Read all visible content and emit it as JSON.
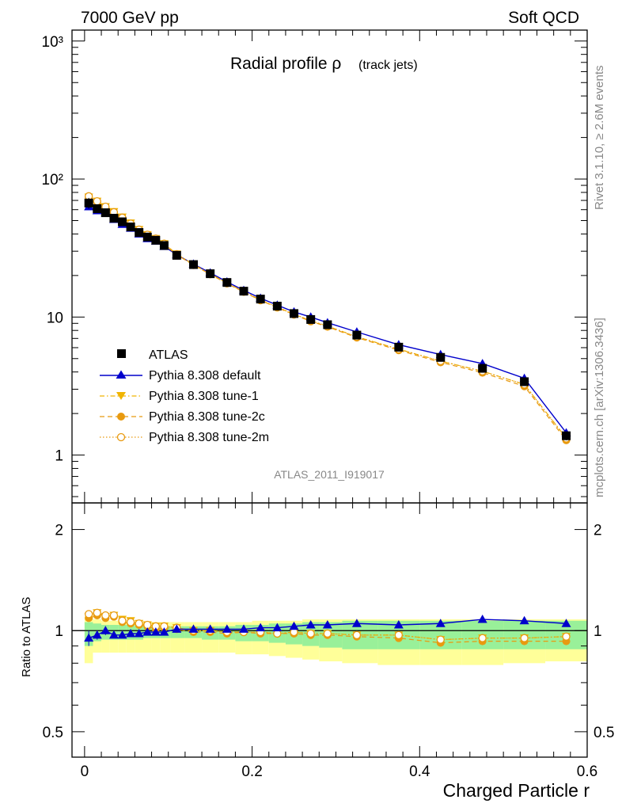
{
  "header": {
    "left": "7000 GeV pp",
    "right": "Soft QCD"
  },
  "side": {
    "rivet": "Rivet 3.1.10, ≥ 2.6M events",
    "source": "mcplots.cern.ch [arXiv:1306.3436]"
  },
  "title": {
    "main": "Radial profile ρ",
    "sub": "(track jets)"
  },
  "analysis_label": "ATLAS_2011_I919017",
  "legend": [
    {
      "label": "ATLAS",
      "color": "#000000",
      "marker": "square",
      "line": "none"
    },
    {
      "label": "Pythia 8.308 default",
      "color": "#0000cc",
      "marker": "triangle-up",
      "line": "solid"
    },
    {
      "label": "Pythia 8.308 tune-1",
      "color": "#f0b400",
      "marker": "triangle-down",
      "line": "dashdot"
    },
    {
      "label": "Pythia 8.308 tune-2c",
      "color": "#e89a10",
      "marker": "circle",
      "line": "dashed"
    },
    {
      "label": "Pythia 8.308 tune-2m",
      "color": "#e89a10",
      "marker": "circle-open",
      "line": "dotted"
    }
  ],
  "chart_data": {
    "type": "line",
    "x": [
      0.005,
      0.015,
      0.025,
      0.035,
      0.045,
      0.055,
      0.065,
      0.075,
      0.085,
      0.095,
      0.11,
      0.13,
      0.15,
      0.17,
      0.19,
      0.21,
      0.23,
      0.25,
      0.27,
      0.29,
      0.325,
      0.375,
      0.425,
      0.475,
      0.525,
      0.575
    ],
    "xlabel": "Charged Particle r",
    "xlim": [
      -0.015,
      0.6
    ],
    "xticks": [
      "0",
      "0.2",
      "0.4",
      "0.6"
    ],
    "main_panel": {
      "yscale": "log",
      "ylim": [
        0.45,
        1200
      ],
      "yticks": [
        "1",
        "10",
        "10²",
        "10³"
      ],
      "series": [
        {
          "name": "ATLAS",
          "values": [
            67,
            61,
            57,
            52,
            49,
            45,
            41,
            38,
            36,
            33,
            28,
            24,
            20.6,
            17.8,
            15.4,
            13.5,
            12.0,
            10.6,
            9.6,
            8.8,
            7.4,
            6.05,
            5.1,
            4.25,
            3.4,
            1.38
          ],
          "errors": [
            6,
            3,
            3,
            2.5,
            2.2,
            2,
            1.8,
            1.5,
            1.4,
            1.3,
            1,
            0.8,
            0.7,
            0.6,
            0.5,
            0.5,
            0.4,
            0.4,
            0.35,
            0.3,
            0.3,
            0.3,
            0.25,
            0.2,
            0.2,
            0.1
          ]
        },
        {
          "name": "Pythia 8.308 default",
          "values": [
            63,
            59,
            57,
            51,
            47,
            44,
            40,
            37,
            35.5,
            32.5,
            28.3,
            24.2,
            20.9,
            18.0,
            15.6,
            13.7,
            12.2,
            10.9,
            10.0,
            9.1,
            7.8,
            6.3,
            5.35,
            4.6,
            3.6,
            1.45
          ]
        },
        {
          "name": "Pythia 8.308 tune-1",
          "values": [
            74,
            69,
            63,
            58,
            53,
            48,
            43,
            39.5,
            37,
            34,
            28.6,
            24.0,
            20.6,
            17.6,
            15.3,
            13.3,
            11.8,
            10.5,
            9.4,
            8.6,
            7.2,
            5.85,
            4.8,
            4.05,
            3.25,
            1.33
          ]
        },
        {
          "name": "Pythia 8.308 tune-2c",
          "values": [
            73,
            68,
            62,
            57,
            52,
            47,
            42.5,
            39,
            36.5,
            33.5,
            28.3,
            23.8,
            20.4,
            17.5,
            15.2,
            13.2,
            11.7,
            10.4,
            9.3,
            8.5,
            7.1,
            5.75,
            4.7,
            3.95,
            3.15,
            1.28
          ]
        },
        {
          "name": "Pythia 8.308 tune-2m",
          "values": [
            75,
            69,
            63,
            57.5,
            52.5,
            47.5,
            43,
            39.5,
            37,
            34,
            28.5,
            24.0,
            20.5,
            17.6,
            15.3,
            13.3,
            11.8,
            10.5,
            9.4,
            8.6,
            7.2,
            5.85,
            4.8,
            4.05,
            3.25,
            1.32
          ]
        }
      ]
    },
    "ratio_panel": {
      "ylabel": "Ratio to ATLAS",
      "yscale": "log",
      "ylim": [
        0.42,
        2.4
      ],
      "yticks": [
        "0.5",
        "1",
        "2"
      ],
      "band_stat_lo": [
        0.9,
        0.93,
        0.94,
        0.94,
        0.94,
        0.94,
        0.94,
        0.95,
        0.95,
        0.95,
        0.95,
        0.95,
        0.94,
        0.94,
        0.93,
        0.93,
        0.92,
        0.91,
        0.9,
        0.89,
        0.88,
        0.88,
        0.88,
        0.88,
        0.88,
        0.88
      ],
      "band_stat_hi": [
        1.06,
        1.05,
        1.04,
        1.04,
        1.04,
        1.04,
        1.03,
        1.03,
        1.03,
        1.03,
        1.03,
        1.03,
        1.03,
        1.03,
        1.04,
        1.04,
        1.05,
        1.05,
        1.06,
        1.06,
        1.07,
        1.07,
        1.07,
        1.07,
        1.07,
        1.07
      ],
      "band_tot_lo": [
        0.8,
        0.86,
        0.86,
        0.86,
        0.86,
        0.86,
        0.86,
        0.86,
        0.86,
        0.86,
        0.86,
        0.86,
        0.86,
        0.86,
        0.85,
        0.85,
        0.84,
        0.83,
        0.82,
        0.81,
        0.8,
        0.79,
        0.79,
        0.79,
        0.8,
        0.81
      ],
      "band_tot_hi": [
        1.1,
        1.08,
        1.07,
        1.07,
        1.07,
        1.07,
        1.06,
        1.06,
        1.06,
        1.06,
        1.06,
        1.06,
        1.06,
        1.06,
        1.06,
        1.07,
        1.07,
        1.07,
        1.08,
        1.08,
        1.08,
        1.08,
        1.08,
        1.08,
        1.08,
        1.08
      ],
      "series": [
        {
          "name": "Pythia 8.308 default",
          "values": [
            0.95,
            0.97,
            1.0,
            0.97,
            0.97,
            0.98,
            0.98,
            0.99,
            0.99,
            0.99,
            1.01,
            1.01,
            1.01,
            1.01,
            1.01,
            1.02,
            1.02,
            1.03,
            1.04,
            1.04,
            1.05,
            1.04,
            1.05,
            1.08,
            1.07,
            1.05
          ],
          "errors": [
            0.05,
            0.03,
            0.03,
            0.02,
            0.02,
            0.02,
            0.02,
            0.02,
            0.02,
            0.02,
            0.01,
            0.01,
            0.01,
            0.01,
            0.01,
            0.01,
            0.01,
            0.01,
            0.01,
            0.01,
            0.01,
            0.01,
            0.01,
            0.01,
            0.01,
            0.01
          ]
        },
        {
          "name": "Pythia 8.308 tune-1",
          "values": [
            1.1,
            1.13,
            1.1,
            1.11,
            1.08,
            1.07,
            1.05,
            1.04,
            1.03,
            1.03,
            1.02,
            1.0,
            1.0,
            0.99,
            0.99,
            0.99,
            0.98,
            0.99,
            0.98,
            0.98,
            0.97,
            0.97,
            0.94,
            0.95,
            0.95,
            0.96
          ]
        },
        {
          "name": "Pythia 8.308 tune-2c",
          "values": [
            1.09,
            1.11,
            1.09,
            1.1,
            1.06,
            1.05,
            1.04,
            1.03,
            1.01,
            1.02,
            1.01,
            0.99,
            0.99,
            0.98,
            0.99,
            0.98,
            0.98,
            0.98,
            0.97,
            0.97,
            0.96,
            0.95,
            0.92,
            0.93,
            0.93,
            0.93
          ]
        },
        {
          "name": "Pythia 8.308 tune-2m",
          "values": [
            1.12,
            1.13,
            1.11,
            1.11,
            1.07,
            1.06,
            1.05,
            1.04,
            1.03,
            1.03,
            1.02,
            1.0,
            1.0,
            0.99,
            0.99,
            0.99,
            0.98,
            0.99,
            0.98,
            0.98,
            0.97,
            0.97,
            0.94,
            0.95,
            0.95,
            0.96
          ]
        }
      ]
    }
  }
}
